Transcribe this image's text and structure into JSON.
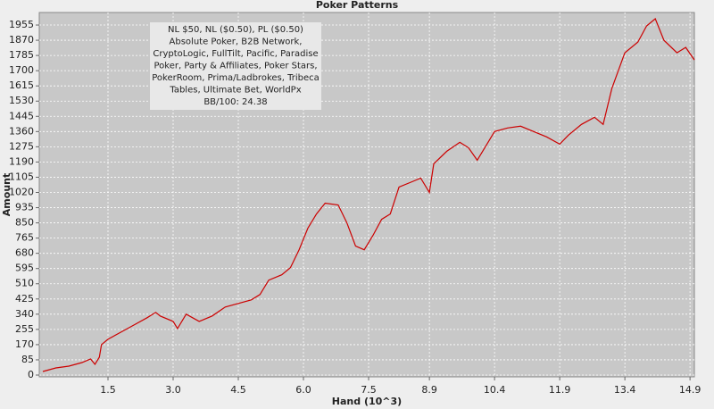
{
  "chart_data": {
    "type": "line",
    "title": "Poker Patterns",
    "x_label": "Hand (10^3)",
    "y_label": "Amount",
    "annotation": [
      "NL $50, NL ($0.50), PL ($0.50)",
      "Absolute Poker, B2B Network,",
      "CryptoLogic, FullTilt, Pacific, Paradise",
      "Poker, Party & Affiliates, Poker Stars,",
      "PokerRoom, Prima/Ladbrokes, Tribeca",
      "Tables, Ultimate Bet, WorldPx",
      "BB/100: 24.38"
    ],
    "x": [
      0,
      0.3,
      0.6,
      0.9,
      1.1,
      1.2,
      1.3,
      1.35,
      1.5,
      1.8,
      2.1,
      2.4,
      2.6,
      2.7,
      3.0,
      3.1,
      3.3,
      3.6,
      3.9,
      4.2,
      4.5,
      4.8,
      5.0,
      5.2,
      5.5,
      5.7,
      5.9,
      6.1,
      6.3,
      6.5,
      6.8,
      7.0,
      7.2,
      7.4,
      7.6,
      7.8,
      8.0,
      8.2,
      8.5,
      8.7,
      8.9,
      9.0,
      9.3,
      9.6,
      9.8,
      10.0,
      10.2,
      10.4,
      10.7,
      11.0,
      11.3,
      11.6,
      11.9,
      12.1,
      12.4,
      12.7,
      12.9,
      13.1,
      13.4,
      13.7,
      13.9,
      14.1,
      14.3,
      14.6,
      14.8,
      15.0
    ],
    "series": [
      {
        "name": "Amount",
        "color": "#cc0000",
        "values": [
          20,
          40,
          50,
          70,
          90,
          60,
          100,
          170,
          200,
          240,
          280,
          320,
          350,
          330,
          300,
          260,
          340,
          300,
          330,
          380,
          400,
          420,
          450,
          530,
          560,
          600,
          700,
          820,
          900,
          960,
          950,
          850,
          720,
          700,
          780,
          870,
          900,
          1050,
          1080,
          1100,
          1020,
          1180,
          1250,
          1300,
          1270,
          1200,
          1280,
          1360,
          1380,
          1390,
          1360,
          1330,
          1290,
          1340,
          1400,
          1440,
          1400,
          1600,
          1800,
          1860,
          1950,
          1990,
          1870,
          1800,
          1830,
          1760
        ]
      }
    ],
    "xlim": [
      0,
      15.0
    ],
    "xticks": [
      1.5,
      {
        "value": 3,
        "label": "3.0"
      },
      4.5,
      {
        "value": 6,
        "label": "6.0"
      },
      7.5,
      8.9,
      10.4,
      11.9,
      13.4,
      14.9
    ],
    "ylim": [
      0,
      2025
    ],
    "yticks": [
      0,
      85,
      170,
      255,
      340,
      425,
      510,
      595,
      680,
      765,
      850,
      935,
      1020,
      1105,
      1190,
      1275,
      1360,
      1445,
      1530,
      1615,
      1700,
      1785,
      1870,
      1955
    ],
    "grid": true
  }
}
